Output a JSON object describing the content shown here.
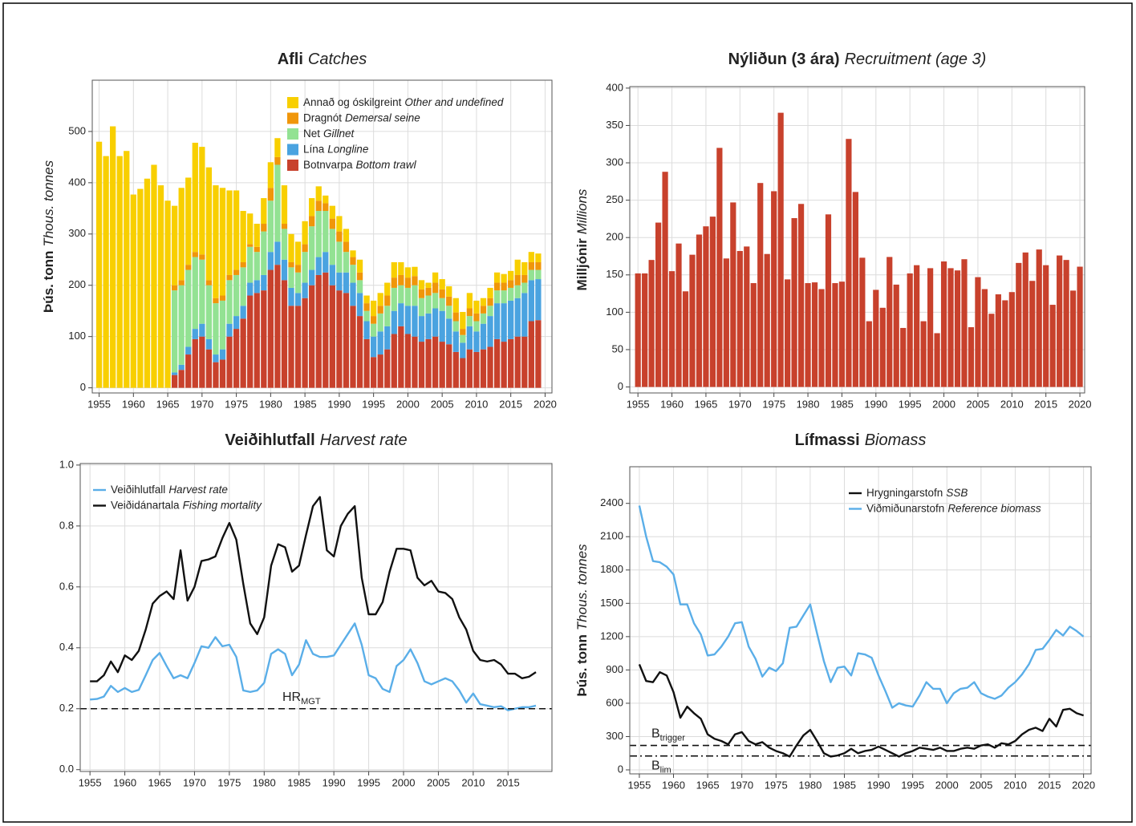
{
  "chart_data": [
    {
      "type": "bar",
      "stacked": true,
      "title": "Afli",
      "title_en": "Catches",
      "ylabel": "Þús. tonn",
      "ylabel_en": "Thous. tonnes",
      "grid": true,
      "legend": "top-right",
      "x": [
        1955,
        1956,
        1957,
        1958,
        1959,
        1960,
        1961,
        1962,
        1963,
        1964,
        1965,
        1966,
        1967,
        1968,
        1969,
        1970,
        1971,
        1972,
        1973,
        1974,
        1975,
        1976,
        1977,
        1978,
        1979,
        1980,
        1981,
        1982,
        1983,
        1984,
        1985,
        1986,
        1987,
        1988,
        1989,
        1990,
        1991,
        1992,
        1993,
        1994,
        1995,
        1996,
        1997,
        1998,
        1999,
        2000,
        2001,
        2002,
        2003,
        2004,
        2005,
        2006,
        2007,
        2008,
        2009,
        2010,
        2011,
        2012,
        2013,
        2014,
        2015,
        2016,
        2017,
        2018,
        2019
      ],
      "xlim": [
        1954,
        2021
      ],
      "xticks": [
        1955,
        1960,
        1965,
        1970,
        1975,
        1980,
        1985,
        1990,
        1995,
        2000,
        2005,
        2010,
        2015,
        2020
      ],
      "ylim": [
        -10,
        600
      ],
      "yticks": [
        0,
        100,
        200,
        300,
        400,
        500
      ],
      "series": [
        {
          "name": "Botnvarpa",
          "name_en": "Bottom trawl",
          "color": "#c8412c",
          "values": [
            0,
            0,
            0,
            0,
            0,
            0,
            0,
            0,
            0,
            0,
            0,
            25,
            35,
            65,
            95,
            100,
            75,
            50,
            55,
            100,
            115,
            135,
            180,
            185,
            190,
            230,
            240,
            210,
            160,
            160,
            175,
            200,
            220,
            225,
            200,
            190,
            185,
            160,
            140,
            95,
            60,
            65,
            75,
            105,
            120,
            105,
            100,
            90,
            95,
            100,
            90,
            85,
            70,
            58,
            75,
            70,
            75,
            80,
            95,
            90,
            95,
            100,
            100,
            130,
            132
          ]
        },
        {
          "name": "Lína",
          "name_en": "Longline",
          "color": "#4aa3e0",
          "values": [
            0,
            0,
            0,
            0,
            0,
            0,
            0,
            0,
            0,
            0,
            0,
            5,
            10,
            15,
            20,
            25,
            20,
            15,
            20,
            25,
            25,
            25,
            25,
            25,
            30,
            35,
            45,
            40,
            35,
            25,
            30,
            30,
            35,
            40,
            40,
            35,
            40,
            45,
            45,
            35,
            40,
            45,
            45,
            45,
            45,
            55,
            60,
            50,
            50,
            55,
            60,
            50,
            40,
            30,
            45,
            40,
            50,
            60,
            70,
            75,
            75,
            75,
            85,
            80,
            80
          ]
        },
        {
          "name": "Net",
          "name_en": "Gillnet",
          "color": "#93e293",
          "values": [
            0,
            0,
            0,
            0,
            0,
            0,
            0,
            0,
            0,
            0,
            0,
            160,
            155,
            150,
            140,
            125,
            105,
            100,
            95,
            85,
            80,
            75,
            70,
            55,
            85,
            100,
            150,
            60,
            40,
            40,
            60,
            85,
            90,
            80,
            70,
            60,
            40,
            35,
            25,
            20,
            25,
            35,
            40,
            45,
            35,
            35,
            40,
            35,
            35,
            30,
            25,
            25,
            20,
            15,
            20,
            20,
            20,
            20,
            25,
            25,
            25,
            25,
            20,
            20,
            18
          ]
        },
        {
          "name": "Dragnót",
          "name_en": "Demersal seine",
          "color": "#f0960a",
          "values": [
            0,
            0,
            0,
            0,
            0,
            0,
            0,
            0,
            0,
            0,
            0,
            10,
            10,
            10,
            10,
            10,
            10,
            10,
            10,
            10,
            10,
            10,
            5,
            10,
            15,
            25,
            15,
            10,
            10,
            15,
            15,
            20,
            20,
            15,
            20,
            20,
            20,
            15,
            15,
            15,
            15,
            15,
            20,
            20,
            20,
            20,
            18,
            17,
            15,
            20,
            17,
            18,
            17,
            12,
            15,
            15,
            15,
            15,
            15,
            15,
            15,
            20,
            15,
            15,
            15
          ]
        },
        {
          "name": "Annað og óskilgreint",
          "name_en": "Other and undefined",
          "color": "#f8cf00",
          "values": [
            480,
            452,
            510,
            452,
            462,
            377,
            388,
            408,
            435,
            395,
            365,
            155,
            180,
            170,
            213,
            210,
            220,
            220,
            210,
            165,
            155,
            100,
            60,
            45,
            50,
            50,
            37,
            75,
            55,
            45,
            45,
            35,
            28,
            15,
            25,
            30,
            25,
            13,
            25,
            15,
            30,
            25,
            25,
            30,
            25,
            20,
            18,
            18,
            10,
            20,
            20,
            20,
            28,
            33,
            30,
            25,
            15,
            20,
            20,
            17,
            18,
            30,
            25,
            20,
            17
          ]
        }
      ]
    },
    {
      "type": "bar",
      "title": "Nýliðun (3 ára)",
      "title_en": "Recruitment (age 3)",
      "ylabel": "Milljónir",
      "ylabel_en": "Millions",
      "grid": true,
      "color": "#c8412c",
      "x": [
        1955,
        1956,
        1957,
        1958,
        1959,
        1960,
        1961,
        1962,
        1963,
        1964,
        1965,
        1966,
        1967,
        1968,
        1969,
        1970,
        1971,
        1972,
        1973,
        1974,
        1975,
        1976,
        1977,
        1978,
        1979,
        1980,
        1981,
        1982,
        1983,
        1984,
        1985,
        1986,
        1987,
        1988,
        1989,
        1990,
        1991,
        1992,
        1993,
        1994,
        1995,
        1996,
        1997,
        1998,
        1999,
        2000,
        2001,
        2002,
        2003,
        2004,
        2005,
        2006,
        2007,
        2008,
        2009,
        2010,
        2011,
        2012,
        2013,
        2014,
        2015,
        2016,
        2017,
        2018,
        2019,
        2020
      ],
      "xlim": [
        1953.8,
        2020.7
      ],
      "xticks": [
        1955,
        1960,
        1965,
        1970,
        1975,
        1980,
        1985,
        1990,
        1995,
        2000,
        2005,
        2010,
        2015,
        2020
      ],
      "ylim": [
        -8,
        402
      ],
      "yticks": [
        0,
        50,
        100,
        150,
        200,
        250,
        300,
        350,
        400
      ],
      "values": [
        152,
        152,
        170,
        220,
        288,
        155,
        192,
        128,
        177,
        204,
        215,
        228,
        320,
        172,
        247,
        182,
        188,
        139,
        273,
        178,
        262,
        367,
        144,
        226,
        245,
        139,
        140,
        131,
        231,
        139,
        141,
        332,
        261,
        173,
        88,
        130,
        106,
        174,
        137,
        79,
        152,
        163,
        88,
        159,
        72,
        168,
        159,
        156,
        171,
        80,
        147,
        131,
        98,
        124,
        116,
        127,
        166,
        180,
        142,
        184,
        163,
        110,
        176,
        170,
        129,
        161
      ]
    },
    {
      "type": "line",
      "title": "Veiðihlutfall",
      "title_en": "Harvest rate",
      "grid": true,
      "legend": "top-left",
      "x": [
        1955,
        1956,
        1957,
        1958,
        1959,
        1960,
        1961,
        1962,
        1963,
        1964,
        1965,
        1966,
        1967,
        1968,
        1969,
        1970,
        1971,
        1972,
        1973,
        1974,
        1975,
        1976,
        1977,
        1978,
        1979,
        1980,
        1981,
        1982,
        1983,
        1984,
        1985,
        1986,
        1987,
        1988,
        1989,
        1990,
        1991,
        1992,
        1993,
        1994,
        1995,
        1996,
        1997,
        1998,
        1999,
        2000,
        2001,
        2002,
        2003,
        2004,
        2005,
        2006,
        2007,
        2008,
        2009,
        2010,
        2011,
        2012,
        2013,
        2014,
        2015,
        2016,
        2017,
        2018,
        2019
      ],
      "xlim": [
        1953.6,
        2021.3
      ],
      "xticks": [
        1955,
        1960,
        1965,
        1970,
        1975,
        1980,
        1985,
        1990,
        1995,
        2000,
        2005,
        2010,
        2015
      ],
      "ylim": [
        -0.006,
        1.005
      ],
      "yticks": [
        {
          "value": 0,
          "label": "0.0"
        },
        0.2,
        0.4,
        0.6,
        0.8,
        {
          "value": 1,
          "label": "1.0"
        }
      ],
      "series": [
        {
          "name": "Veiðihlutfall",
          "name_en": "Harvest rate",
          "color": "#5aaee8",
          "values": [
            0.23,
            0.232,
            0.24,
            0.275,
            0.255,
            0.268,
            0.255,
            0.262,
            0.31,
            0.36,
            0.383,
            0.34,
            0.3,
            0.31,
            0.3,
            0.35,
            0.405,
            0.4,
            0.435,
            0.405,
            0.41,
            0.37,
            0.26,
            0.255,
            0.26,
            0.285,
            0.38,
            0.395,
            0.38,
            0.31,
            0.345,
            0.425,
            0.38,
            0.37,
            0.37,
            0.375,
            0.41,
            0.445,
            0.48,
            0.41,
            0.31,
            0.3,
            0.265,
            0.255,
            0.34,
            0.36,
            0.395,
            0.35,
            0.29,
            0.28,
            0.29,
            0.3,
            0.29,
            0.26,
            0.22,
            0.25,
            0.215,
            0.21,
            0.205,
            0.208,
            0.195,
            0.2,
            0.205,
            0.205,
            0.21
          ]
        },
        {
          "name": "Veiðidánartala",
          "name_en": "Fishing mortality",
          "color": "#111111",
          "values": [
            0.29,
            0.29,
            0.31,
            0.355,
            0.32,
            0.375,
            0.36,
            0.39,
            0.46,
            0.545,
            0.57,
            0.585,
            0.56,
            0.72,
            0.555,
            0.6,
            0.685,
            0.69,
            0.7,
            0.76,
            0.81,
            0.755,
            0.61,
            0.48,
            0.445,
            0.5,
            0.67,
            0.74,
            0.73,
            0.65,
            0.67,
            0.77,
            0.865,
            0.895,
            0.72,
            0.7,
            0.8,
            0.84,
            0.865,
            0.63,
            0.51,
            0.51,
            0.55,
            0.65,
            0.725,
            0.725,
            0.72,
            0.63,
            0.605,
            0.62,
            0.585,
            0.58,
            0.56,
            0.5,
            0.46,
            0.39,
            0.36,
            0.355,
            0.36,
            0.345,
            0.315,
            0.315,
            0.3,
            0.305,
            0.32
          ]
        }
      ],
      "ref_lines": [
        {
          "value": 0.2,
          "label": "HR",
          "sub": "MGT",
          "style": "dashed"
        }
      ]
    },
    {
      "type": "line",
      "title": "Lífmassi",
      "title_en": "Biomass",
      "ylabel": "Þús. tonn",
      "ylabel_en": "Thous. tonnes",
      "grid": true,
      "legend": "top-right",
      "x": [
        1955,
        1956,
        1957,
        1958,
        1959,
        1960,
        1961,
        1962,
        1963,
        1964,
        1965,
        1966,
        1967,
        1968,
        1969,
        1970,
        1971,
        1972,
        1973,
        1974,
        1975,
        1976,
        1977,
        1978,
        1979,
        1980,
        1981,
        1982,
        1983,
        1984,
        1985,
        1986,
        1987,
        1988,
        1989,
        1990,
        1991,
        1992,
        1993,
        1994,
        1995,
        1996,
        1997,
        1998,
        1999,
        2000,
        2001,
        2002,
        2003,
        2004,
        2005,
        2006,
        2007,
        2008,
        2009,
        2010,
        2011,
        2012,
        2013,
        2014,
        2015,
        2016,
        2017,
        2018,
        2019,
        2020
      ],
      "xlim": [
        1953.6,
        2021.1
      ],
      "xticks": [
        1955,
        1960,
        1965,
        1970,
        1975,
        1980,
        1985,
        1990,
        1995,
        2000,
        2005,
        2010,
        2015,
        2020
      ],
      "ylim": [
        -36,
        2730
      ],
      "yticks": [
        0,
        300,
        600,
        900,
        1200,
        1500,
        1800,
        2100,
        2400
      ],
      "series": [
        {
          "name": "Hrygningarstofn",
          "name_en": "SSB",
          "color": "#111111",
          "values": [
            950,
            800,
            790,
            880,
            850,
            700,
            470,
            570,
            510,
            460,
            320,
            280,
            260,
            230,
            320,
            340,
            260,
            230,
            250,
            200,
            170,
            150,
            120,
            220,
            310,
            360,
            260,
            150,
            120,
            130,
            150,
            190,
            150,
            170,
            180,
            210,
            180,
            150,
            120,
            150,
            170,
            200,
            190,
            180,
            200,
            170,
            170,
            190,
            200,
            190,
            220,
            230,
            200,
            240,
            230,
            260,
            320,
            360,
            380,
            350,
            460,
            390,
            540,
            550,
            510,
            490
          ]
        },
        {
          "name": "Viðmiðunarstofn",
          "name_en": "Reference biomass",
          "color": "#5aaee8",
          "values": [
            2380,
            2100,
            1880,
            1870,
            1830,
            1760,
            1490,
            1490,
            1320,
            1220,
            1030,
            1040,
            1110,
            1200,
            1320,
            1330,
            1110,
            1000,
            840,
            920,
            890,
            960,
            1280,
            1290,
            1390,
            1490,
            1230,
            980,
            790,
            920,
            930,
            850,
            1050,
            1040,
            1010,
            850,
            710,
            560,
            600,
            580,
            570,
            670,
            790,
            730,
            730,
            600,
            690,
            730,
            740,
            790,
            690,
            660,
            640,
            670,
            740,
            790,
            860,
            950,
            1080,
            1090,
            1170,
            1260,
            1210,
            1290,
            1250,
            1200
          ]
        }
      ],
      "ref_lines": [
        {
          "value": 220,
          "label": "B",
          "sub": "trigger",
          "style": "dashed"
        },
        {
          "value": 125,
          "label": "B",
          "sub": "lim",
          "style": "dashdot"
        }
      ]
    }
  ]
}
